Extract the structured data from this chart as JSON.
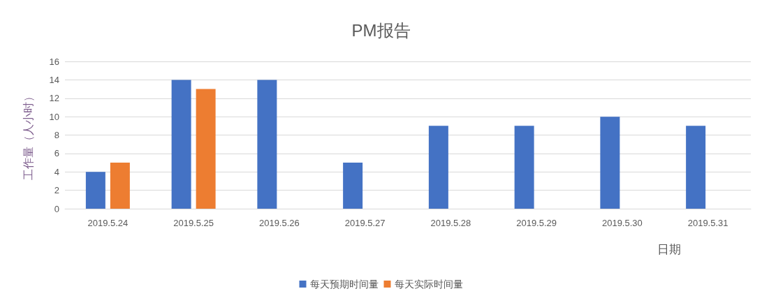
{
  "chart_data": {
    "type": "bar",
    "title": "PM报告",
    "xlabel": "日期",
    "ylabel": "工作量（人小时）",
    "categories": [
      "2019.5.24",
      "2019.5.25",
      "2019.5.26",
      "2019.5.27",
      "2019.5.28",
      "2019.5.29",
      "2019.5.30",
      "2019.5.31"
    ],
    "series": [
      {
        "name": "每天预期时间量",
        "color": "#4472c4",
        "values": [
          4,
          14,
          14,
          5,
          9,
          9,
          10,
          9
        ]
      },
      {
        "name": "每天实际时间量",
        "color": "#ed7d31",
        "values": [
          5,
          13,
          null,
          null,
          null,
          null,
          null,
          null
        ]
      }
    ],
    "ylim": [
      0,
      16
    ],
    "yticks": [
      0,
      2,
      4,
      6,
      8,
      10,
      12,
      14,
      16
    ],
    "grid": "y",
    "legend": "bottom"
  }
}
